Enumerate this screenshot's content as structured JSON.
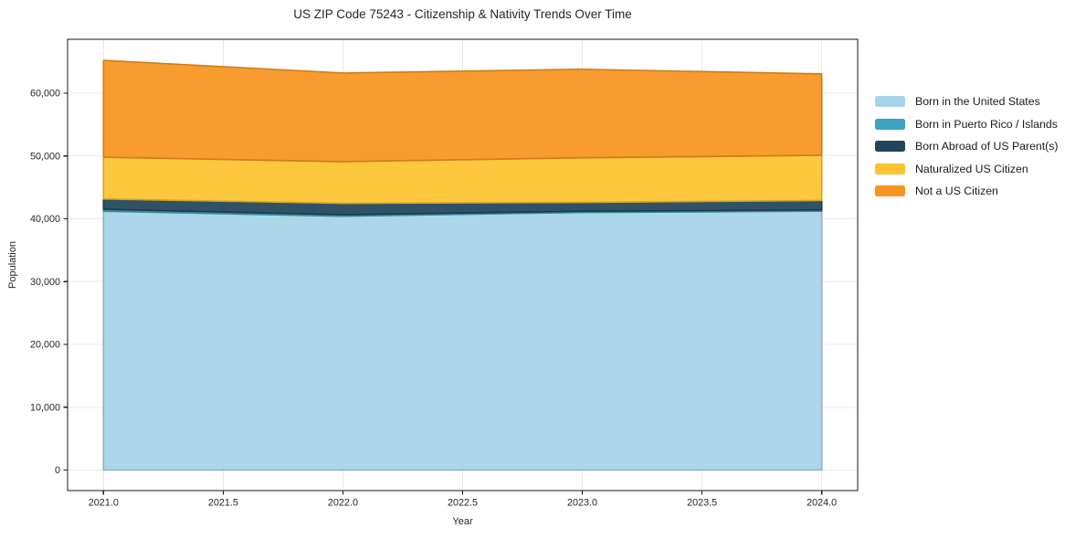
{
  "figure": {
    "background": "#ffffff",
    "axis_color": "#1a1a1a",
    "tick_color": "#262626",
    "grid_color": "#e9e9e9"
  },
  "chart_data": {
    "type": "area",
    "stacked": true,
    "title": "US ZIP Code 75243 - Citizenship & Nativity Trends Over Time",
    "xlabel": "Year",
    "ylabel": "Population",
    "x": [
      2021,
      2022,
      2023,
      2024
    ],
    "xlim": [
      2020.85,
      2024.15
    ],
    "ylim": [
      -3265,
      68565
    ],
    "grid": true,
    "legend_position": "right-outside",
    "x_tick_labels": [
      "2021.0",
      "2021.5",
      "2022.0",
      "2022.5",
      "2023.0",
      "2023.5",
      "2024.0"
    ],
    "y_tick_labels": [
      "0",
      "10,000",
      "20,000",
      "30,000",
      "40,000",
      "50,000",
      "60,000"
    ],
    "series": [
      {
        "name": "Born in the United States",
        "color": "#a6d4ea",
        "values": [
          41200,
          40400,
          41000,
          41200
        ]
      },
      {
        "name": "Born in Puerto Rico / Islands",
        "color": "#3ba3bf",
        "values": [
          300,
          250,
          200,
          200
        ]
      },
      {
        "name": "Born Abroad of US Parent(s)",
        "color": "#21455a",
        "values": [
          1650,
          1800,
          1400,
          1500
        ]
      },
      {
        "name": "Naturalized US Citizen",
        "color": "#fdc32f",
        "values": [
          6650,
          6650,
          7100,
          7200
        ]
      },
      {
        "name": "Not a US Citizen",
        "color": "#f7941f",
        "values": [
          15400,
          14100,
          14100,
          12950
        ]
      }
    ],
    "totals": [
      65200,
      63200,
      63800,
      63050
    ]
  }
}
